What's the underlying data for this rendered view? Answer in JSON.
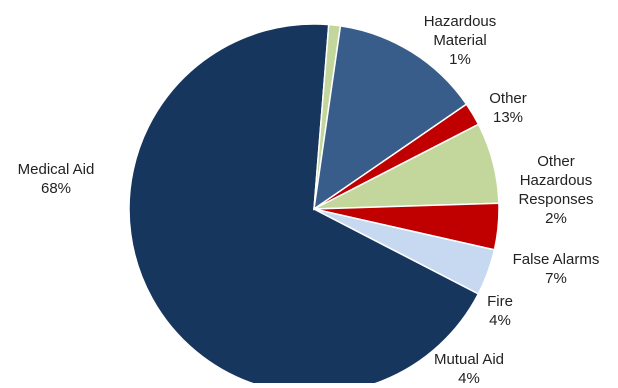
{
  "chart_data": {
    "type": "pie",
    "title": "",
    "slices": [
      {
        "label": "Medical Aid",
        "value": 68,
        "value_label": "68%",
        "color": "#17365d"
      },
      {
        "label": "Hazardous Material",
        "value": 1,
        "value_label": "1%",
        "color": "#c3d69b"
      },
      {
        "label": "Other",
        "value": 13,
        "value_label": "13%",
        "color": "#385d8a"
      },
      {
        "label": "Other Hazardous Responses",
        "value": 2,
        "value_label": "2%",
        "color": "#c00000"
      },
      {
        "label": "False Alarms",
        "value": 7,
        "value_label": "7%",
        "color": "#c3d69b"
      },
      {
        "label": "Fire",
        "value": 4,
        "value_label": "4%",
        "color": "#c00000"
      },
      {
        "label": "Mutual Aid",
        "value": 4,
        "value_label": "4%",
        "color": "#c6d9f1"
      }
    ]
  }
}
